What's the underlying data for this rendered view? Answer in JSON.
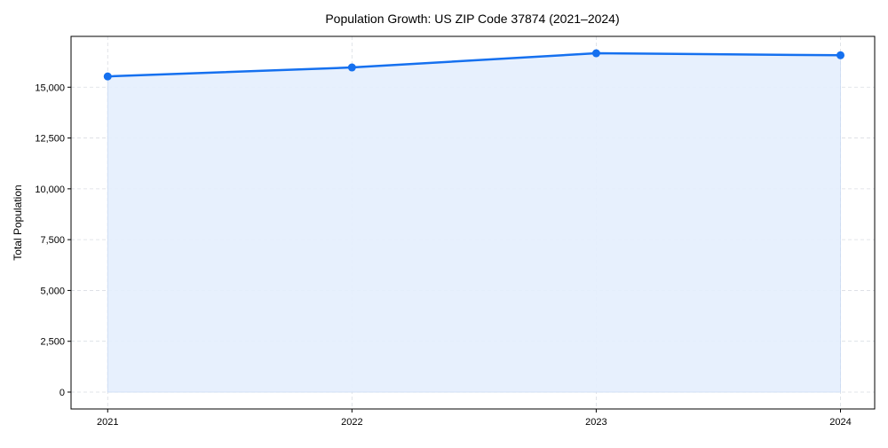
{
  "chart_data": {
    "type": "area",
    "title": "Population Growth: US ZIP Code 37874 (2021–2024)",
    "xlabel": "",
    "ylabel": "Total Population",
    "x": [
      2021,
      2022,
      2023,
      2024
    ],
    "x_tick_labels": [
      "2021",
      "2022",
      "2023",
      "2024"
    ],
    "series": [
      {
        "name": "Total Population",
        "values": [
          15530,
          15970,
          16670,
          16570
        ]
      }
    ],
    "y_ticks": [
      0,
      2500,
      5000,
      7500,
      10000,
      12500,
      15000
    ],
    "y_tick_labels": [
      "0",
      "2,500",
      "5,000",
      "7,500",
      "10,000",
      "12,500",
      "15,000"
    ],
    "xlim": [
      2020.85,
      2024.14
    ],
    "ylim": [
      -830,
      17500
    ],
    "grid": true,
    "colors": {
      "line": "#1570ef",
      "fill": "#e4eefd",
      "grid": "#d9dde3"
    }
  }
}
